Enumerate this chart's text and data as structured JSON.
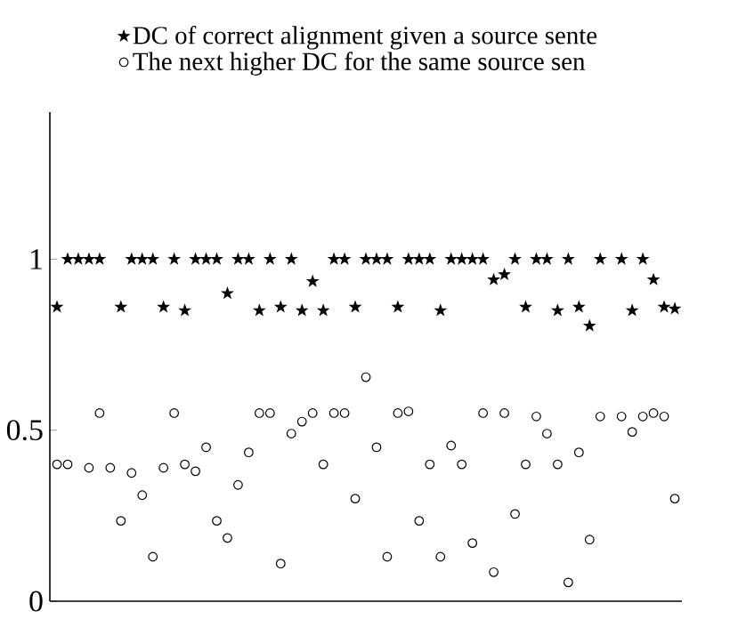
{
  "chart_data": {
    "type": "scatter",
    "categories": [
      null,
      null,
      null,
      null,
      null,
      null,
      null,
      null,
      null,
      null,
      null,
      null,
      null,
      null,
      null,
      null,
      null,
      null,
      null,
      null,
      null,
      null,
      null,
      null,
      null,
      null,
      null,
      null,
      null,
      null,
      null,
      null,
      null,
      null,
      null,
      null,
      null,
      null,
      null,
      null,
      null,
      null,
      null,
      null,
      null,
      null,
      null,
      null,
      null,
      null,
      null,
      null,
      null,
      null,
      null,
      null,
      null,
      null,
      null
    ],
    "series": [
      {
        "name": "DC of correct alignment given a source sente",
        "color": "#000000",
        "marker": "star",
        "values": [
          0.86,
          1,
          1,
          1,
          1,
          null,
          0.86,
          1,
          1,
          1,
          0.86,
          1,
          0.85,
          1,
          1,
          1,
          0.9,
          1,
          1,
          0.85,
          1,
          0.86,
          1,
          0.85,
          0.935,
          0.85,
          1,
          1,
          0.86,
          1,
          1,
          1,
          0.86,
          1,
          1,
          1,
          0.85,
          1,
          1,
          1,
          1,
          0.94,
          0.955,
          1,
          0.86,
          1,
          1,
          0.85,
          1,
          0.86,
          0.805,
          1,
          null,
          1,
          0.85,
          1,
          0.94,
          0.86,
          0.855
        ]
      },
      {
        "name": "The next higher DC for the same source sen",
        "color": "#000000",
        "marker": "circle",
        "values": [
          0.4,
          0.4,
          null,
          0.39,
          0.55,
          0.39,
          0.235,
          0.375,
          0.31,
          0.13,
          0.39,
          0.55,
          0.4,
          0.38,
          0.45,
          0.235,
          0.185,
          0.34,
          0.435,
          0.55,
          0.55,
          0.11,
          0.49,
          0.525,
          0.55,
          0.4,
          0.55,
          0.55,
          0.3,
          0.655,
          0.45,
          0.13,
          0.55,
          0.555,
          0.235,
          0.4,
          0.13,
          0.455,
          0.4,
          0.17,
          0.55,
          0.085,
          0.55,
          0.255,
          0.4,
          0.54,
          0.49,
          0.4,
          0.055,
          0.435,
          0.18,
          0.54,
          null,
          0.54,
          0.495,
          0.54,
          0.55,
          0.54,
          0.3
        ]
      }
    ],
    "ylim": [
      0,
      1.43
    ],
    "yticks": [
      0,
      0.5,
      1
    ],
    "tick_labels": "y",
    "legend": "top"
  }
}
